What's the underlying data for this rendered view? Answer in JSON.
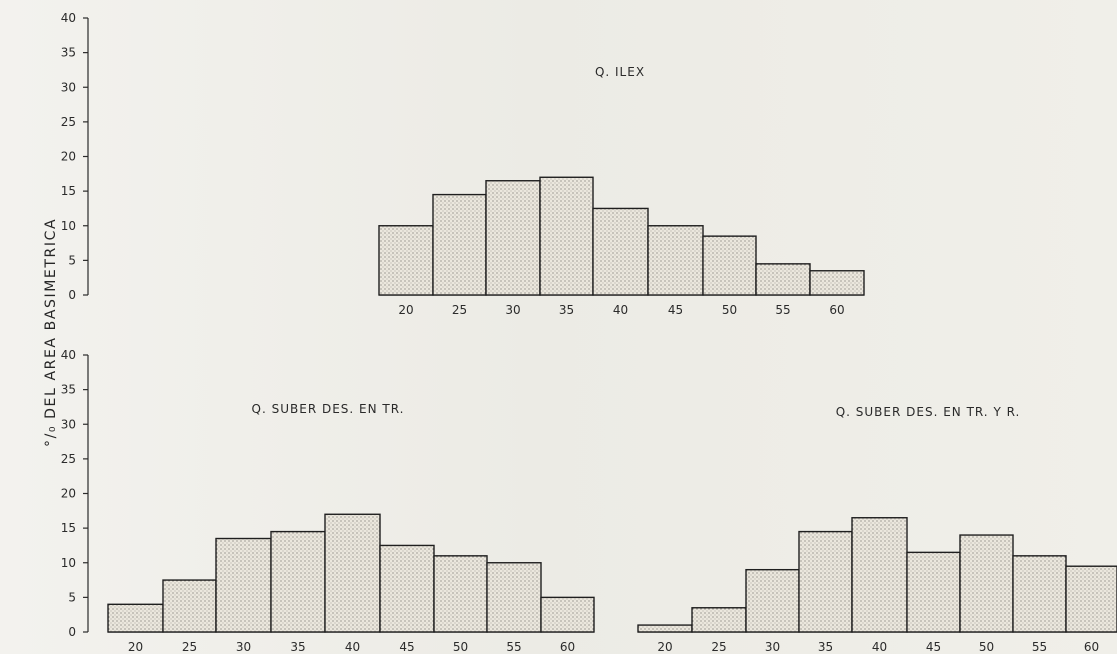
{
  "figure": {
    "shared_ylabel": "°/₀ DEL AREA BASIMETRICA",
    "colors": {
      "background": "#f1f0eb",
      "line": "#2b2b2b",
      "bar_fill": "#ebe7dd",
      "dot": "#6e6b67"
    }
  },
  "chart_data": [
    {
      "type": "bar",
      "title": "Q. ILEX",
      "categories": [
        "20",
        "25",
        "30",
        "35",
        "40",
        "45",
        "50",
        "55",
        "60"
      ],
      "values": [
        10,
        14.5,
        16.5,
        17,
        12.5,
        10,
        8.5,
        4.5,
        3.5
      ],
      "ylim": [
        0,
        40
      ],
      "yticks": [
        "0",
        "5",
        "10",
        "15",
        "20",
        "25",
        "30",
        "35",
        "40"
      ],
      "grid": false,
      "legend": "none"
    },
    {
      "type": "bar",
      "title": "Q. SUBER DES. EN TR.",
      "categories": [
        "20",
        "25",
        "30",
        "35",
        "40",
        "45",
        "50",
        "55",
        "60"
      ],
      "values": [
        4,
        7.5,
        13.5,
        14.5,
        17,
        12.5,
        11,
        10,
        5
      ],
      "ylim": [
        0,
        40
      ],
      "yticks": [
        "0",
        "5",
        "10",
        "15",
        "20",
        "25",
        "30",
        "35",
        "40"
      ],
      "grid": false,
      "legend": "none"
    },
    {
      "type": "bar",
      "title": "Q. SUBER DES. EN TR. Y R.",
      "categories": [
        "20",
        "25",
        "30",
        "35",
        "40",
        "45",
        "50",
        "55",
        "60"
      ],
      "values": [
        1,
        3.5,
        9,
        14.5,
        16.5,
        11.5,
        14,
        11,
        9.5
      ],
      "ylim": [
        0,
        40
      ],
      "yticks": [],
      "grid": false,
      "legend": "none"
    }
  ]
}
